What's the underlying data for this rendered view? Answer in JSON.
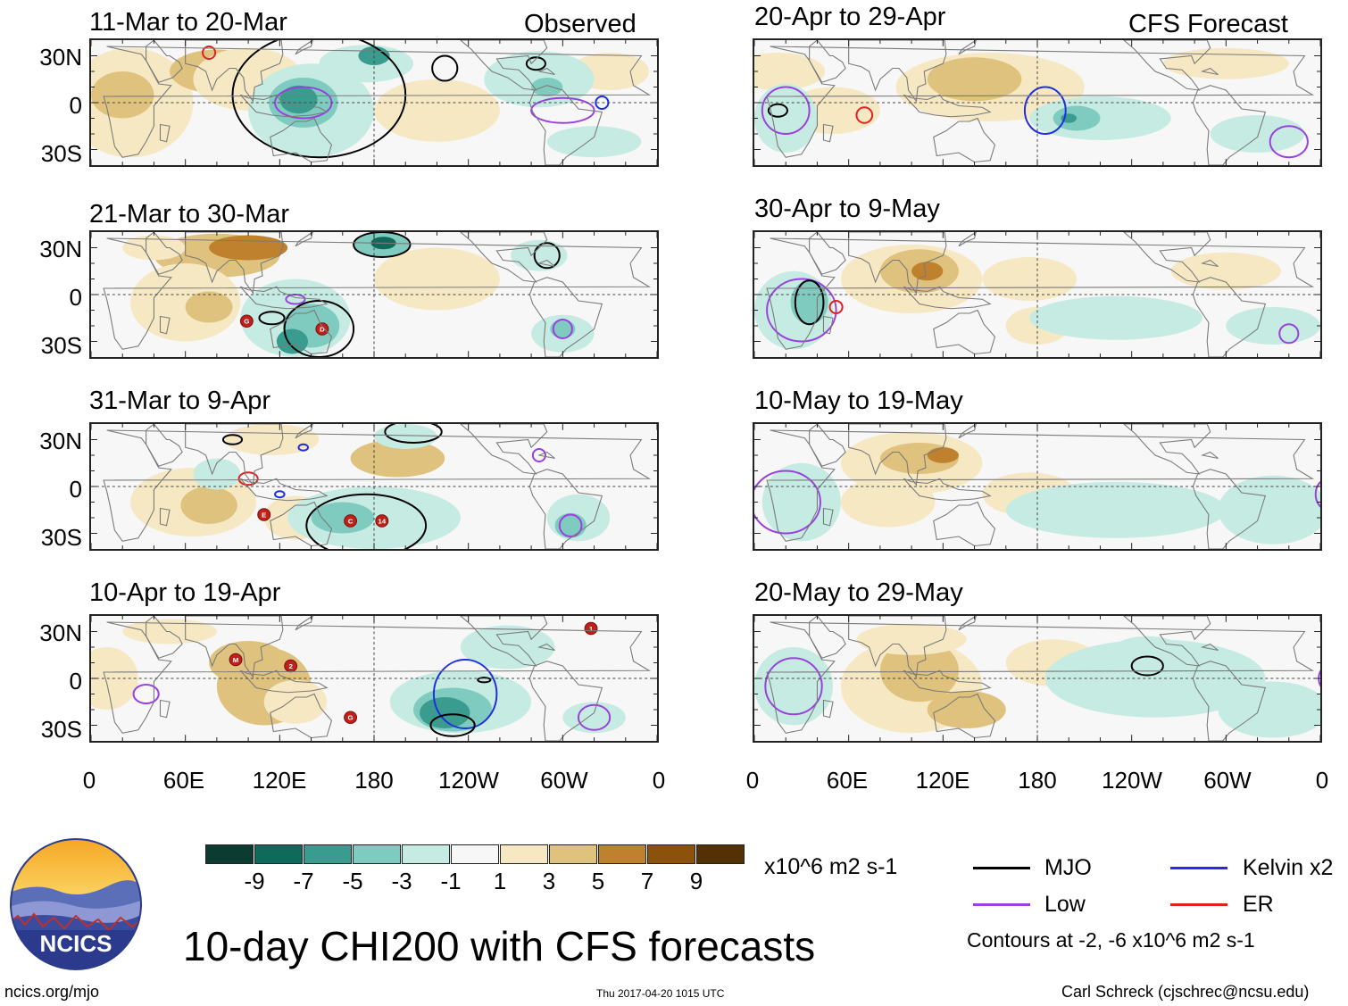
{
  "observed_tag": "Observed",
  "forecast_tag": "CFS Forecast",
  "panels_left": [
    {
      "title": "11-Mar to 20-Mar"
    },
    {
      "title": "21-Mar to 30-Mar"
    },
    {
      "title": "31-Mar to 9-Apr"
    },
    {
      "title": "10-Apr to 19-Apr"
    }
  ],
  "panels_right": [
    {
      "title": "20-Apr to 29-Apr"
    },
    {
      "title": "30-Apr to 9-May"
    },
    {
      "title": "10-May to 19-May"
    },
    {
      "title": "20-May to 29-May"
    }
  ],
  "lat_labels": [
    "30N",
    "0",
    "30S"
  ],
  "lon_labels": [
    "0",
    "60E",
    "120E",
    "180",
    "120W",
    "60W",
    "0"
  ],
  "colorbar": {
    "colors": [
      "#0c3b32",
      "#0f6a5c",
      "#3a9c8f",
      "#80cbbf",
      "#c6ebe3",
      "#f7f7f7",
      "#f6e8c3",
      "#dfc27d",
      "#bf812d",
      "#8c510a",
      "#543005"
    ],
    "labels": [
      "-9",
      "-7",
      "-5",
      "-3",
      "-1",
      "1",
      "3",
      "5",
      "7",
      "9"
    ]
  },
  "units": "x10^6 m2 s-1",
  "legend": [
    {
      "label": "MJO",
      "color": "#000000"
    },
    {
      "label": "Kelvin x2",
      "color": "#1f2ee0"
    },
    {
      "label": "Low",
      "color": "#9a3fe0"
    },
    {
      "label": "ER",
      "color": "#e01f1f"
    }
  ],
  "contours_note": "Contours at -2, -6 x10^6 m2 s-1",
  "main_title": "10-day CHI200 with CFS forecasts",
  "logo_text": "NCICS",
  "footer_left": "ncics.org/mjo",
  "footer_center": "Thu 2017-04-20 1015 UTC",
  "footer_right": "Carl Schreck (cjschrec@ncsu.edu)",
  "storm_labels": {
    "p1": [
      "G",
      "D"
    ],
    "p2": [
      "E",
      "C",
      "14"
    ],
    "p3": [
      "M",
      "2",
      "G",
      "1"
    ]
  }
}
